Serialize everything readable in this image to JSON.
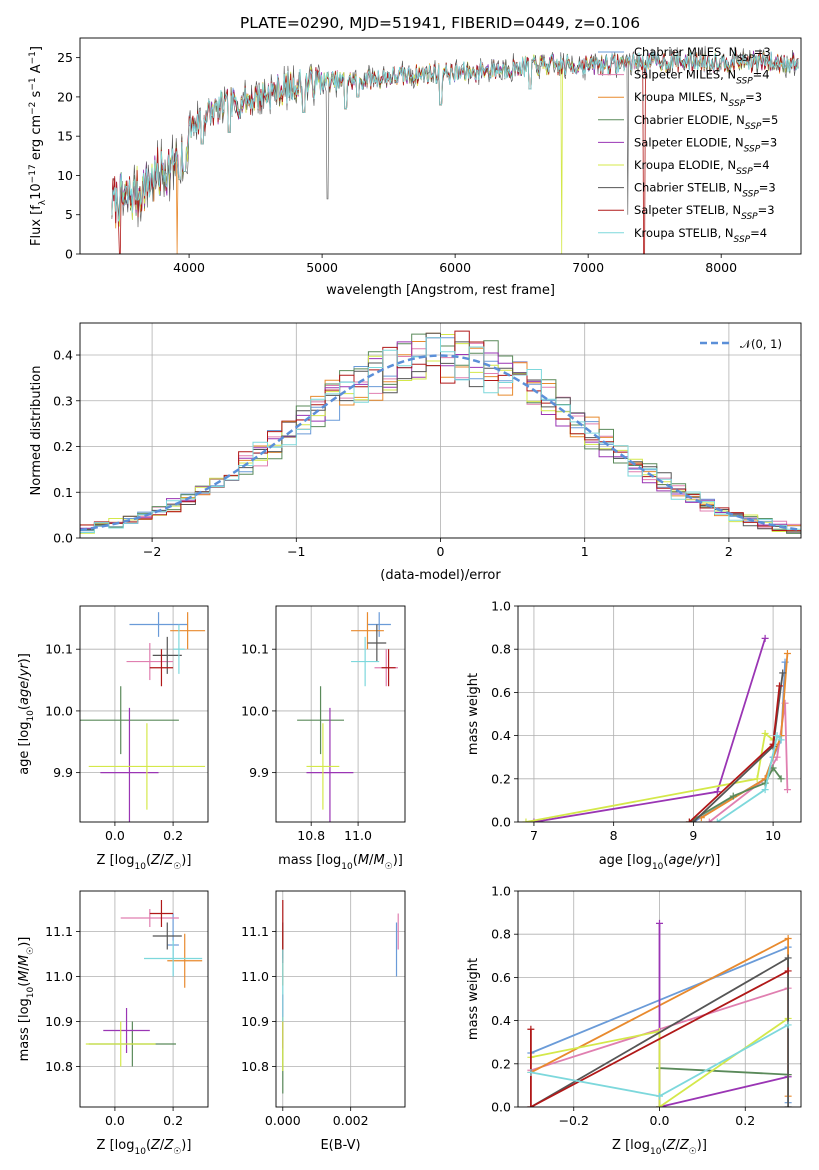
{
  "title": "PLATE=0290, MJD=51941, FIBERID=0449, z=0.106",
  "models": [
    {
      "name": "Chabrier MILES",
      "n": "3",
      "color": "#6a9bd8"
    },
    {
      "name": "Salpeter MILES",
      "n": "4",
      "color": "#e07fb0"
    },
    {
      "name": "Kroupa MILES",
      "n": "3",
      "color": "#e88a2e"
    },
    {
      "name": "Chabrier ELODIE",
      "n": "5",
      "color": "#5a8a5a"
    },
    {
      "name": "Salpeter ELODIE",
      "n": "3",
      "color": "#9a35b4"
    },
    {
      "name": "Kroupa ELODIE",
      "n": "4",
      "color": "#d4e84a"
    },
    {
      "name": "Chabrier STELIB",
      "n": "3",
      "color": "#555555"
    },
    {
      "name": "Salpeter STELIB",
      "n": "3",
      "color": "#b01818"
    },
    {
      "name": "Kroupa STELIB",
      "n": "4",
      "color": "#7dd8dc"
    }
  ],
  "gauss_label": "𝒩(0, 1)",
  "gauss_color": "#5b8fd8",
  "chart_data": [
    {
      "type": "line",
      "xlabel": "wavelength [Angstrom, rest frame]",
      "ylabel": "Flux [f_λ10^-17 erg cm^-2 s^-1 A^-1]",
      "xlim": [
        3180,
        8600
      ],
      "ylim": [
        0,
        27.5
      ],
      "xticks": [
        4000,
        5000,
        6000,
        7000,
        8000
      ],
      "yticks": [
        0,
        5,
        10,
        15,
        20,
        25
      ],
      "spectrum_range": [
        3420,
        8580
      ],
      "continuum": [
        [
          3420,
          6.5
        ],
        [
          3600,
          7.5
        ],
        [
          3800,
          10.5
        ],
        [
          3950,
          12
        ],
        [
          4000,
          16
        ],
        [
          4200,
          18.5
        ],
        [
          4400,
          19.5
        ],
        [
          4600,
          20.5
        ],
        [
          4800,
          21.5
        ],
        [
          5000,
          22
        ],
        [
          5200,
          22
        ],
        [
          5500,
          22.5
        ],
        [
          5800,
          23
        ],
        [
          6000,
          23
        ],
        [
          6300,
          23.5
        ],
        [
          6600,
          24
        ],
        [
          7000,
          24
        ],
        [
          7400,
          24.5
        ],
        [
          7800,
          24.5
        ],
        [
          8200,
          24.5
        ],
        [
          8580,
          24.3
        ]
      ],
      "absorption_lines": [
        [
          3933,
          9.5
        ],
        [
          3968,
          10.5
        ],
        [
          4101,
          14
        ],
        [
          4304,
          15.5
        ],
        [
          4861,
          18
        ],
        [
          5175,
          18.5
        ],
        [
          5270,
          20
        ],
        [
          5892,
          19
        ],
        [
          6563,
          21
        ]
      ]
    },
    {
      "type": "histogram",
      "xlabel": "(data-model)/error",
      "ylabel": "Normed distribution",
      "xlim": [
        -2.5,
        2.5
      ],
      "ylim": [
        0,
        0.47
      ],
      "xticks": [
        -2,
        -1,
        0,
        1,
        2
      ],
      "yticks": [
        0.0,
        0.1,
        0.2,
        0.3,
        0.4
      ],
      "bin_width": 0.1,
      "gaussian": {
        "mean": 0,
        "sigma": 1
      }
    },
    {
      "type": "scatter",
      "xlabel": "Z [log10(Z/Z☉)]",
      "ylabel": "age [log10(age/yr)]",
      "xlim": [
        -0.12,
        0.32
      ],
      "ylim": [
        9.82,
        10.17
      ],
      "xticks": [
        0.0,
        0.2
      ],
      "yticks": [
        9.9,
        10.0,
        10.1
      ],
      "points": [
        {
          "x": 0.15,
          "y": 10.14,
          "xe": 0.1,
          "ye": 0.02
        },
        {
          "x": 0.12,
          "y": 10.08,
          "xe": 0.08,
          "ye": 0.03
        },
        {
          "x": 0.25,
          "y": 10.13,
          "xe": 0.06,
          "ye": 0.03
        },
        {
          "x": 0.02,
          "y": 9.985,
          "xe": 0.2,
          "ye": 0.055
        },
        {
          "x": 0.05,
          "y": 9.9,
          "xe": 0.1,
          "ye": 0.105
        },
        {
          "x": 0.11,
          "y": 9.91,
          "xe": 0.2,
          "ye": 0.07
        },
        {
          "x": 0.18,
          "y": 10.09,
          "xe": 0.05,
          "ye": 0.03
        },
        {
          "x": 0.16,
          "y": 10.07,
          "xe": 0.04,
          "ye": 0.03
        },
        {
          "x": 0.22,
          "y": 10.1,
          "xe": 0.02,
          "ye": 0.04
        }
      ]
    },
    {
      "type": "scatter",
      "xlabel": "mass [log10(M/M☉)]",
      "ylabel": "",
      "xlim": [
        10.65,
        11.2
      ],
      "ylim": [
        9.82,
        10.17
      ],
      "xticks": [
        10.8,
        11.0
      ],
      "yticks": [
        9.9,
        10.0,
        10.1
      ],
      "points": [
        {
          "x": 11.09,
          "y": 10.14,
          "xe": 0.05,
          "ye": 0.02
        },
        {
          "x": 11.12,
          "y": 10.07,
          "xe": 0.05,
          "ye": 0.03
        },
        {
          "x": 11.04,
          "y": 10.13,
          "xe": 0.07,
          "ye": 0.03
        },
        {
          "x": 10.84,
          "y": 9.985,
          "xe": 0.1,
          "ye": 0.055
        },
        {
          "x": 10.88,
          "y": 9.9,
          "xe": 0.1,
          "ye": 0.105
        },
        {
          "x": 10.85,
          "y": 9.91,
          "xe": 0.07,
          "ye": 0.07
        },
        {
          "x": 11.08,
          "y": 10.11,
          "xe": 0.04,
          "ye": 0.03
        },
        {
          "x": 11.13,
          "y": 10.07,
          "xe": 0.03,
          "ye": 0.03
        },
        {
          "x": 11.03,
          "y": 10.08,
          "xe": 0.06,
          "ye": 0.04
        }
      ]
    },
    {
      "type": "line",
      "xlabel": "age [log10(age/yr)]",
      "ylabel": "mass weight",
      "xlim": [
        6.8,
        10.35
      ],
      "ylim": [
        0,
        1.0
      ],
      "xticks": [
        7,
        8,
        9,
        10
      ],
      "yticks": [
        0.0,
        0.2,
        0.4,
        0.6,
        0.8,
        1.0
      ],
      "series": [
        {
          "points": [
            [
              9.0,
              0.0
            ],
            [
              9.9,
              0.2
            ],
            [
              10.0,
              0.3
            ],
            [
              10.1,
              0.38
            ],
            [
              10.15,
              0.74
            ]
          ]
        },
        {
          "points": [
            [
              9.2,
              0.0
            ],
            [
              9.9,
              0.2
            ],
            [
              10.05,
              0.3
            ],
            [
              10.15,
              0.55
            ],
            [
              10.18,
              0.15
            ]
          ]
        },
        {
          "points": [
            [
              9.1,
              0.02
            ],
            [
              9.9,
              0.2
            ],
            [
              10.1,
              0.4
            ],
            [
              10.18,
              0.78
            ]
          ]
        },
        {
          "points": [
            [
              8.95,
              0.0
            ],
            [
              9.5,
              0.12
            ],
            [
              9.9,
              0.18
            ],
            [
              10.0,
              0.25
            ],
            [
              10.1,
              0.2
            ]
          ]
        },
        {
          "points": [
            [
              7.0,
              0.0
            ],
            [
              9.3,
              0.14
            ],
            [
              9.9,
              0.85
            ]
          ]
        },
        {
          "points": [
            [
              6.9,
              0.0
            ],
            [
              9.8,
              0.2
            ],
            [
              9.9,
              0.41
            ],
            [
              10.0,
              0.38
            ]
          ]
        },
        {
          "points": [
            [
              9.0,
              0.0
            ],
            [
              10.0,
              0.35
            ],
            [
              10.12,
              0.69
            ]
          ]
        },
        {
          "points": [
            [
              8.95,
              0.0
            ],
            [
              10.0,
              0.36
            ],
            [
              10.08,
              0.63
            ]
          ]
        },
        {
          "points": [
            [
              9.3,
              0.0
            ],
            [
              9.9,
              0.15
            ],
            [
              10.05,
              0.4
            ],
            [
              10.1,
              0.38
            ]
          ]
        }
      ]
    },
    {
      "type": "scatter",
      "xlabel": "Z [log10(Z/Z☉)]",
      "ylabel": "mass [log10(M/M☉)]",
      "xlim": [
        -0.12,
        0.32
      ],
      "ylim": [
        10.71,
        11.19
      ],
      "xticks": [
        0.0,
        0.2
      ],
      "yticks": [
        10.8,
        10.9,
        11.0,
        11.1
      ],
      "points": [
        {
          "x": 0.2,
          "y": 11.07,
          "xe": 0.02,
          "ye": 0.07
        },
        {
          "x": 0.12,
          "y": 11.13,
          "xe": 0.1,
          "ye": 0.02
        },
        {
          "x": 0.24,
          "y": 11.035,
          "xe": 0.06,
          "ye": 0.06
        },
        {
          "x": 0.06,
          "y": 10.85,
          "xe": 0.15,
          "ye": 0.05
        },
        {
          "x": 0.04,
          "y": 10.88,
          "xe": 0.08,
          "ye": 0.05
        },
        {
          "x": 0.02,
          "y": 10.85,
          "xe": 0.12,
          "ye": 0.05
        },
        {
          "x": 0.18,
          "y": 11.09,
          "xe": 0.05,
          "ye": 0.03
        },
        {
          "x": 0.16,
          "y": 11.14,
          "xe": 0.04,
          "ye": 0.03
        },
        {
          "x": 0.2,
          "y": 11.04,
          "xe": 0.1,
          "ye": 0.04
        }
      ]
    },
    {
      "type": "scatter",
      "xlabel": "E(B-V)",
      "ylabel": "",
      "xlim": [
        -0.0002,
        0.0036
      ],
      "ylim": [
        10.71,
        11.19
      ],
      "xticks": [
        0.0,
        0.002
      ],
      "xtick_labels": [
        "0.000",
        "0.002"
      ],
      "yticks": [
        10.8,
        10.9,
        11.0,
        11.1
      ],
      "points": [
        {
          "x": 0.00335,
          "y": 11.06,
          "xe": 0,
          "ye": 0.06
        },
        {
          "x": 0.0034,
          "y": 11.1,
          "xe": 0,
          "ye": 0.04
        },
        {
          "x": 0.0,
          "y": 11.04,
          "xe": 0,
          "ye": 0.06
        },
        {
          "x": 0.0,
          "y": 10.82,
          "xe": 0,
          "ye": 0.08
        },
        {
          "x": 0.0,
          "y": 10.9,
          "xe": 0,
          "ye": 0.06
        },
        {
          "x": 0.0,
          "y": 10.85,
          "xe": 0,
          "ye": 0.06
        },
        {
          "x": 0.0,
          "y": 11.08,
          "xe": 0,
          "ye": 0.04
        },
        {
          "x": 0.0,
          "y": 11.1,
          "xe": 0,
          "ye": 0.07
        },
        {
          "x": 0.0,
          "y": 10.98,
          "xe": 0,
          "ye": 0.08
        }
      ]
    },
    {
      "type": "line",
      "xlabel": "Z [log10(Z/Z☉)]",
      "ylabel": "mass weight",
      "xlim": [
        -0.33,
        0.33
      ],
      "ylim": [
        0,
        1.0
      ],
      "xticks": [
        -0.2,
        0.0,
        0.2
      ],
      "yticks": [
        0.0,
        0.2,
        0.4,
        0.6,
        0.8,
        1.0
      ],
      "series": [
        {
          "points": [
            [
              -0.3,
              0.25
            ],
            [
              0.3,
              0.74
            ],
            [
              0.3,
              0.02
            ]
          ]
        },
        {
          "points": [
            [
              -0.3,
              0.17
            ],
            [
              0.3,
              0.55
            ],
            [
              0.3,
              0.15
            ]
          ]
        },
        {
          "points": [
            [
              -0.3,
              0.16
            ],
            [
              0.3,
              0.78
            ],
            [
              0.3,
              0.05
            ]
          ]
        },
        {
          "points": [
            [
              0.0,
              0.0
            ],
            [
              0.0,
              0.18
            ],
            [
              0.3,
              0.15
            ]
          ]
        },
        {
          "points": [
            [
              0.0,
              0.85
            ],
            [
              0.0,
              0.0
            ],
            [
              0.3,
              0.14
            ]
          ]
        },
        {
          "points": [
            [
              -0.3,
              0.23
            ],
            [
              0.0,
              0.35
            ],
            [
              0.0,
              0.0
            ],
            [
              0.3,
              0.41
            ]
          ]
        },
        {
          "points": [
            [
              -0.3,
              0.0
            ],
            [
              0.3,
              0.69
            ],
            [
              0.3,
              0.0
            ]
          ]
        },
        {
          "points": [
            [
              -0.3,
              0.36
            ],
            [
              -0.3,
              0.0
            ],
            [
              0.3,
              0.63
            ]
          ]
        },
        {
          "points": [
            [
              -0.3,
              0.16
            ],
            [
              0.0,
              0.05
            ],
            [
              0.3,
              0.38
            ]
          ]
        }
      ]
    }
  ]
}
